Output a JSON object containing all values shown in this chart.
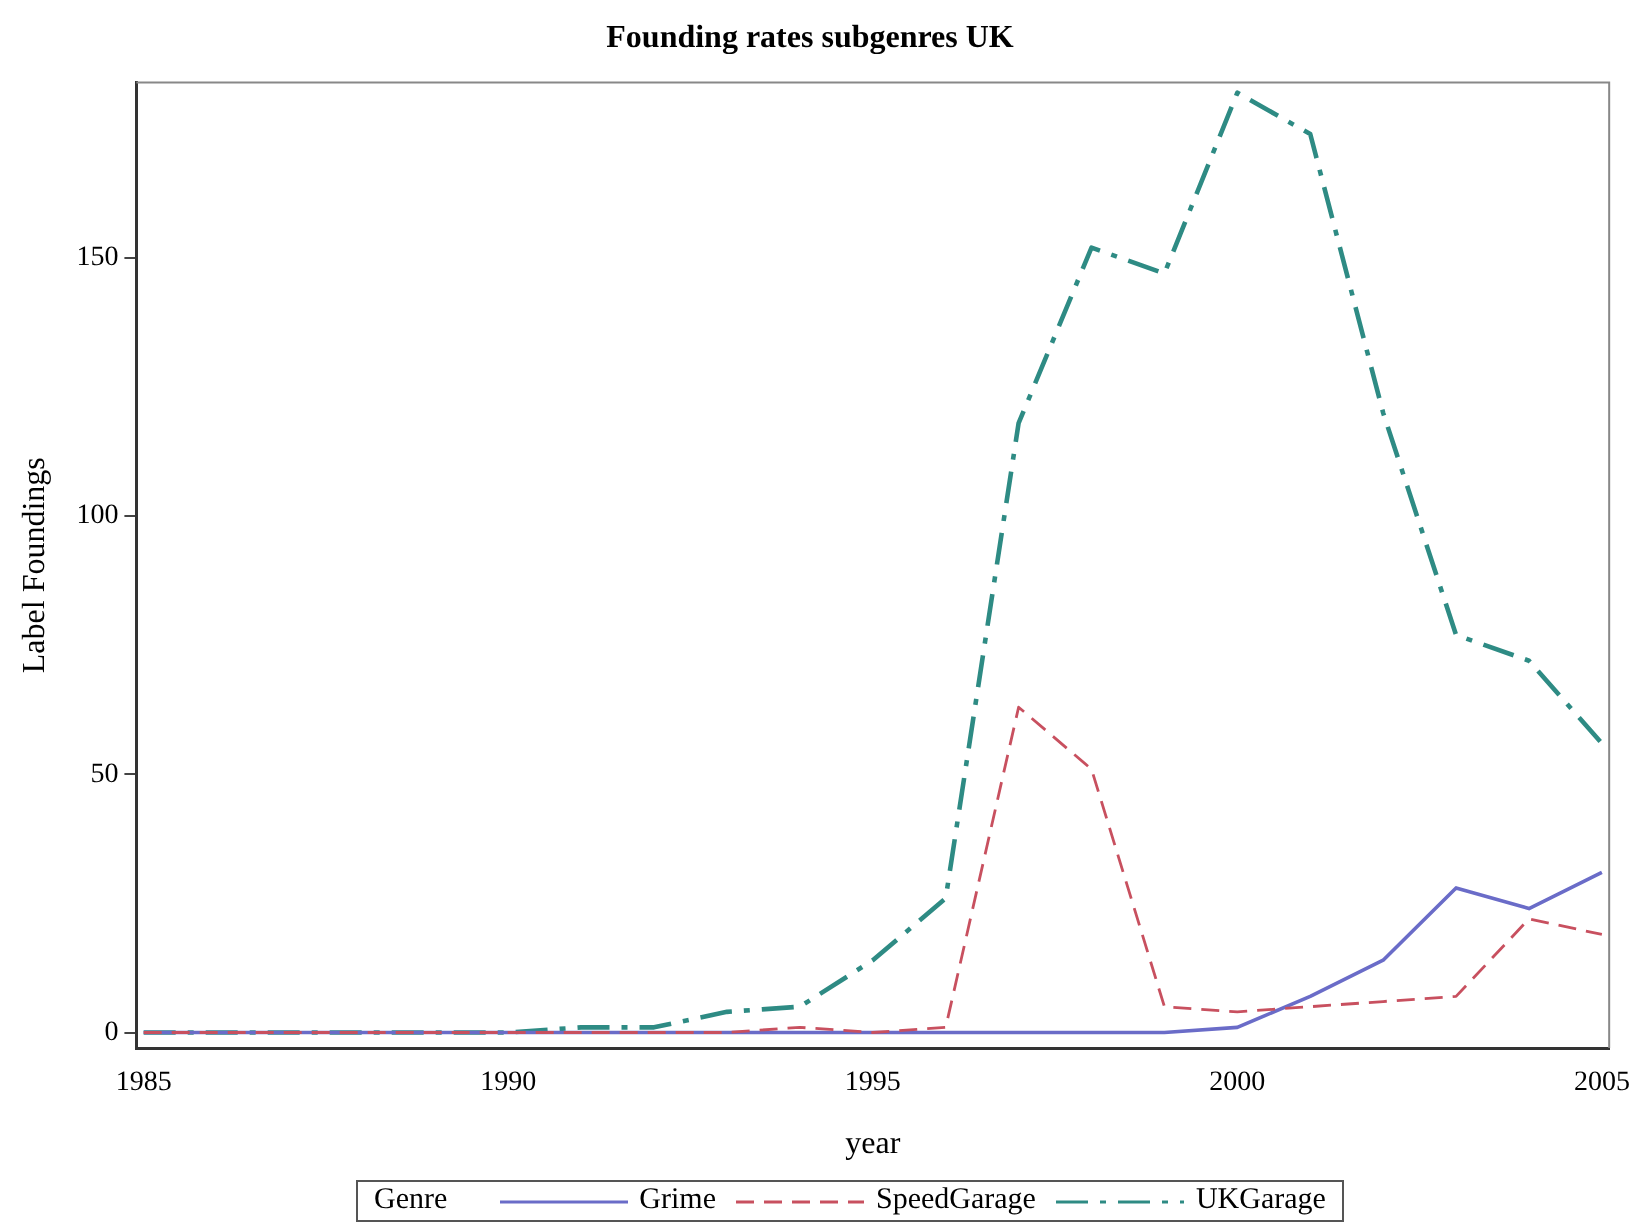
{
  "chart_data": {
    "type": "line",
    "title": "Founding rates subgenres UK",
    "xlabel": "year",
    "ylabel": "Label Foundings",
    "legend_title": "Genre",
    "x": [
      1985,
      1986,
      1987,
      1988,
      1989,
      1990,
      1991,
      1992,
      1993,
      1994,
      1995,
      1996,
      1997,
      1998,
      1999,
      2000,
      2001,
      2002,
      2003,
      2004,
      2005
    ],
    "series": [
      {
        "name": "Grime",
        "color": "#6a6cc8",
        "line_style": "solid",
        "values": [
          0,
          0,
          0,
          0,
          0,
          0,
          0,
          0,
          0,
          0,
          0,
          0,
          0,
          0,
          0,
          1,
          7,
          14,
          28,
          24,
          31
        ]
      },
      {
        "name": "SpeedGarage",
        "color": "#c8505f",
        "line_style": "dashed",
        "values": [
          0,
          0,
          0,
          0,
          0,
          0,
          0,
          0,
          0,
          1,
          0,
          1,
          63,
          51,
          5,
          4,
          5,
          6,
          7,
          22,
          19
        ]
      },
      {
        "name": "UKGarage",
        "color": "#2e8b84",
        "line_style": "dashdot",
        "values": [
          0,
          0,
          0,
          0,
          0,
          0,
          1,
          1,
          4,
          5,
          14,
          26,
          118,
          152,
          147,
          182,
          174,
          120,
          77,
          72,
          56
        ]
      }
    ],
    "xlim": [
      1984.9,
      2005.1
    ],
    "xticks": [
      1985,
      1990,
      1995,
      2000,
      2005
    ],
    "ylim": [
      -3,
      184
    ],
    "yticks": [
      0,
      50,
      100,
      150
    ],
    "grid": false,
    "legend": "bottom",
    "marker": "none"
  }
}
